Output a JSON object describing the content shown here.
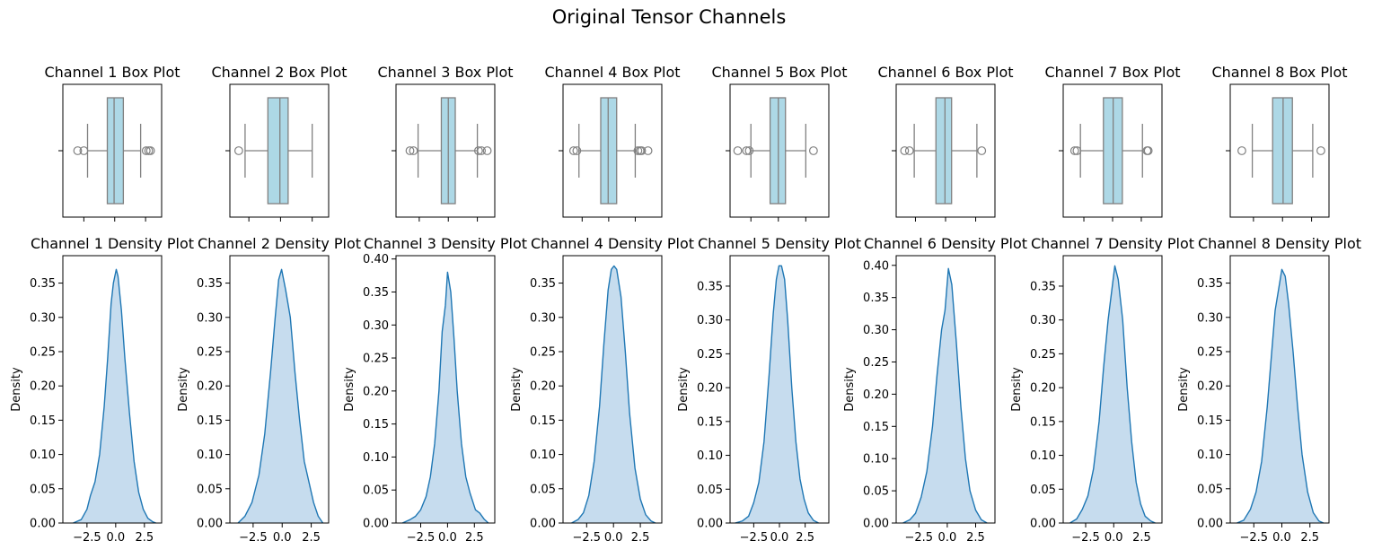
{
  "figure": {
    "title": "Original Tensor Channels"
  },
  "style": {
    "box_fill": "#add8e6",
    "box_stroke": "#808080",
    "kde_line": "#1f77b4",
    "kde_fill": "#c6dcee"
  },
  "chart_data": [
    {
      "type": "box",
      "title": "Channel 1 Box Plot",
      "xlim": [
        -4.2,
        3.8
      ],
      "q1": -0.6,
      "median": -0.05,
      "q3": 0.7,
      "whisker_low": -2.2,
      "whisker_high": 2.1,
      "outliers": [
        -3.0,
        -2.5,
        2.55,
        2.75,
        2.9
      ],
      "xticks": [
        -2.5,
        0.0,
        2.5
      ]
    },
    {
      "type": "box",
      "title": "Channel 2 Box Plot",
      "xlim": [
        -4.0,
        3.8
      ],
      "q1": -1.0,
      "median": -0.05,
      "q3": 0.6,
      "whisker_low": -2.8,
      "whisker_high": 2.5,
      "outliers": [
        -3.3
      ],
      "xticks": [
        -2.5,
        0.0,
        2.5
      ]
    },
    {
      "type": "box",
      "title": "Channel 3 Box Plot",
      "xlim": [
        -4.5,
        4.0
      ],
      "q1": -0.6,
      "median": 0.0,
      "q3": 0.6,
      "whisker_low": -2.6,
      "whisker_high": 2.5,
      "outliers": [
        -3.3,
        -3.0,
        2.6,
        2.85,
        3.35
      ],
      "xticks": [
        -2.5,
        0.0,
        2.5
      ]
    },
    {
      "type": "box",
      "title": "Channel 4 Box Plot",
      "xlim": [
        -4.3,
        5.0
      ],
      "q1": -0.75,
      "median": -0.05,
      "q3": 0.75,
      "whisker_low": -2.8,
      "whisker_high": 2.5,
      "outliers": [
        -3.3,
        -3.0,
        2.75,
        2.95,
        3.1,
        3.7
      ],
      "xticks": [
        -2.5,
        0.0,
        2.5
      ]
    },
    {
      "type": "box",
      "title": "Channel 5 Box Plot",
      "xlim": [
        -4.4,
        4.6
      ],
      "q1": -0.75,
      "median": 0.0,
      "q3": 0.65,
      "whisker_low": -2.5,
      "whisker_high": 2.5,
      "outliers": [
        -3.7,
        -2.9,
        -2.65,
        3.2
      ],
      "xticks": [
        -2.5,
        0.0,
        2.5
      ]
    },
    {
      "type": "box",
      "title": "Channel 6 Box Plot",
      "xlim": [
        -4.1,
        4.1
      ],
      "q1": -0.8,
      "median": -0.05,
      "q3": 0.5,
      "whisker_low": -2.6,
      "whisker_high": 2.6,
      "outliers": [
        -3.4,
        -3.0,
        3.0
      ],
      "xticks": [
        -2.5,
        0.0,
        2.5
      ]
    },
    {
      "type": "box",
      "title": "Channel 7 Box Plot",
      "xlim": [
        -4.3,
        4.3
      ],
      "q1": -0.8,
      "median": 0.05,
      "q3": 0.85,
      "whisker_low": -2.8,
      "whisker_high": 2.6,
      "outliers": [
        -3.3,
        -3.1,
        3.0,
        3.1
      ],
      "xticks": [
        -2.5,
        0.0,
        2.5
      ]
    },
    {
      "type": "box",
      "title": "Channel 8 Box Plot",
      "xlim": [
        -4.5,
        4.0
      ],
      "q1": -0.85,
      "median": 0.05,
      "q3": 0.85,
      "whisker_low": -2.6,
      "whisker_high": 2.6,
      "outliers": [
        -3.5,
        3.3
      ],
      "xticks": [
        -2.5,
        0.0,
        2.5
      ]
    },
    {
      "type": "kde",
      "title": "Channel 1 Density Plot",
      "ylabel": "Density",
      "xlim": [
        -4.6,
        4.0
      ],
      "ylim": [
        0,
        0.39
      ],
      "yticks": [
        0.0,
        0.05,
        0.1,
        0.15,
        0.2,
        0.25,
        0.3,
        0.35
      ],
      "xticks": [
        -2.5,
        0.0,
        2.5
      ],
      "x": [
        -3.7,
        -3.0,
        -2.5,
        -2.2,
        -1.8,
        -1.4,
        -1.0,
        -0.7,
        -0.4,
        -0.2,
        0.05,
        0.2,
        0.5,
        0.8,
        1.2,
        1.6,
        2.0,
        2.4,
        2.8,
        3.2,
        3.5
      ],
      "y": [
        0.0,
        0.005,
        0.02,
        0.04,
        0.06,
        0.1,
        0.17,
        0.24,
        0.32,
        0.35,
        0.37,
        0.36,
        0.31,
        0.24,
        0.16,
        0.09,
        0.045,
        0.02,
        0.007,
        0.002,
        0.0
      ]
    },
    {
      "type": "kde",
      "title": "Channel 2 Density Plot",
      "ylabel": "Density",
      "xlim": [
        -4.5,
        4.0
      ],
      "ylim": [
        0,
        0.39
      ],
      "yticks": [
        0.0,
        0.05,
        0.1,
        0.15,
        0.2,
        0.25,
        0.3,
        0.35
      ],
      "xticks": [
        -2.5,
        0.0,
        2.5
      ],
      "x": [
        -3.8,
        -3.2,
        -2.6,
        -2.0,
        -1.5,
        -1.0,
        -0.6,
        -0.3,
        -0.05,
        0.3,
        0.7,
        1.1,
        1.5,
        1.9,
        2.3,
        2.7,
        3.1,
        3.5
      ],
      "y": [
        0.0,
        0.01,
        0.03,
        0.07,
        0.13,
        0.22,
        0.3,
        0.355,
        0.37,
        0.34,
        0.3,
        0.22,
        0.15,
        0.09,
        0.06,
        0.03,
        0.01,
        0.0
      ]
    },
    {
      "type": "kde",
      "title": "Channel 3 Density Plot",
      "ylabel": "Density",
      "xlim": [
        -4.8,
        4.4
      ],
      "ylim": [
        0,
        0.405
      ],
      "yticks": [
        0.0,
        0.05,
        0.1,
        0.15,
        0.2,
        0.25,
        0.3,
        0.35,
        0.4
      ],
      "xticks": [
        -2.5,
        0.0,
        2.5
      ],
      "x": [
        -4.2,
        -3.5,
        -3.0,
        -2.5,
        -2.0,
        -1.6,
        -1.2,
        -0.8,
        -0.5,
        -0.2,
        0.0,
        0.3,
        0.6,
        0.9,
        1.3,
        1.7,
        2.1,
        2.6,
        3.0,
        3.4,
        3.8
      ],
      "y": [
        0.0,
        0.005,
        0.01,
        0.02,
        0.04,
        0.07,
        0.12,
        0.2,
        0.29,
        0.33,
        0.38,
        0.35,
        0.28,
        0.2,
        0.12,
        0.07,
        0.045,
        0.02,
        0.015,
        0.006,
        0.0
      ]
    },
    {
      "type": "kde",
      "title": "Channel 4 Density Plot",
      "ylabel": "Density",
      "xlim": [
        -4.7,
        4.5
      ],
      "ylim": [
        0,
        0.39
      ],
      "yticks": [
        0.0,
        0.05,
        0.1,
        0.15,
        0.2,
        0.25,
        0.3,
        0.35
      ],
      "xticks": [
        -2.5,
        0.0,
        2.5
      ],
      "x": [
        -3.9,
        -3.3,
        -2.8,
        -2.3,
        -1.8,
        -1.3,
        -0.9,
        -0.5,
        -0.2,
        0.05,
        0.3,
        0.7,
        1.1,
        1.5,
        2.0,
        2.5,
        3.0,
        3.5,
        3.9
      ],
      "y": [
        0.0,
        0.005,
        0.015,
        0.04,
        0.09,
        0.17,
        0.26,
        0.34,
        0.37,
        0.375,
        0.37,
        0.33,
        0.25,
        0.16,
        0.08,
        0.035,
        0.012,
        0.003,
        0.0
      ]
    },
    {
      "type": "kde",
      "title": "Channel 5 Density Plot",
      "ylabel": "Density",
      "xlim": [
        -4.8,
        4.8
      ],
      "ylim": [
        0,
        0.395
      ],
      "yticks": [
        0.0,
        0.05,
        0.1,
        0.15,
        0.2,
        0.25,
        0.3,
        0.35
      ],
      "xticks": [
        -2.5,
        0.0,
        2.5
      ],
      "x": [
        -4.3,
        -3.6,
        -3.0,
        -2.5,
        -2.0,
        -1.5,
        -1.0,
        -0.6,
        -0.3,
        -0.05,
        0.2,
        0.5,
        0.8,
        1.2,
        1.6,
        2.0,
        2.4,
        2.8,
        3.3,
        3.8
      ],
      "y": [
        0.0,
        0.003,
        0.01,
        0.03,
        0.06,
        0.12,
        0.22,
        0.31,
        0.36,
        0.38,
        0.38,
        0.36,
        0.3,
        0.2,
        0.12,
        0.065,
        0.035,
        0.015,
        0.004,
        0.0
      ]
    },
    {
      "type": "kde",
      "title": "Channel 6 Density Plot",
      "ylabel": "Density",
      "xlim": [
        -4.5,
        4.2
      ],
      "ylim": [
        0,
        0.415
      ],
      "yticks": [
        0.0,
        0.05,
        0.1,
        0.15,
        0.2,
        0.25,
        0.3,
        0.35,
        0.4
      ],
      "xticks": [
        -2.5,
        0.0,
        2.5
      ],
      "x": [
        -3.9,
        -3.3,
        -2.8,
        -2.3,
        -1.8,
        -1.3,
        -0.9,
        -0.5,
        -0.2,
        0.1,
        0.4,
        0.8,
        1.2,
        1.6,
        2.0,
        2.5,
        3.0,
        3.5
      ],
      "y": [
        0.0,
        0.005,
        0.015,
        0.04,
        0.08,
        0.15,
        0.23,
        0.3,
        0.33,
        0.395,
        0.37,
        0.28,
        0.18,
        0.1,
        0.05,
        0.02,
        0.005,
        0.0
      ]
    },
    {
      "type": "kde",
      "title": "Channel 7 Density Plot",
      "ylabel": "Density",
      "xlim": [
        -4.5,
        4.3
      ],
      "ylim": [
        0,
        0.395
      ],
      "yticks": [
        0.0,
        0.05,
        0.1,
        0.15,
        0.2,
        0.25,
        0.3,
        0.35
      ],
      "xticks": [
        -2.5,
        0.0,
        2.5
      ],
      "x": [
        -3.9,
        -3.3,
        -2.8,
        -2.3,
        -1.8,
        -1.3,
        -0.9,
        -0.5,
        -0.2,
        0.1,
        0.4,
        0.8,
        1.2,
        1.6,
        2.0,
        2.4,
        2.8,
        3.3,
        3.7
      ],
      "y": [
        0.0,
        0.006,
        0.02,
        0.04,
        0.08,
        0.15,
        0.23,
        0.3,
        0.34,
        0.38,
        0.36,
        0.3,
        0.2,
        0.12,
        0.06,
        0.028,
        0.01,
        0.003,
        0.0
      ]
    },
    {
      "type": "kde",
      "title": "Channel 8 Density Plot",
      "ylabel": "Density",
      "xlim": [
        -4.6,
        4.2
      ],
      "ylim": [
        0,
        0.39
      ],
      "yticks": [
        0.0,
        0.05,
        0.1,
        0.15,
        0.2,
        0.25,
        0.3,
        0.35
      ],
      "xticks": [
        -2.5,
        0.0,
        2.5
      ],
      "x": [
        -4.0,
        -3.4,
        -2.8,
        -2.3,
        -1.8,
        -1.3,
        -0.9,
        -0.6,
        -0.3,
        0.0,
        0.3,
        0.6,
        1.0,
        1.4,
        1.8,
        2.3,
        2.8,
        3.3,
        3.7
      ],
      "y": [
        0.0,
        0.004,
        0.02,
        0.045,
        0.09,
        0.17,
        0.25,
        0.31,
        0.34,
        0.37,
        0.36,
        0.32,
        0.25,
        0.17,
        0.1,
        0.045,
        0.015,
        0.003,
        0.0
      ]
    }
  ]
}
